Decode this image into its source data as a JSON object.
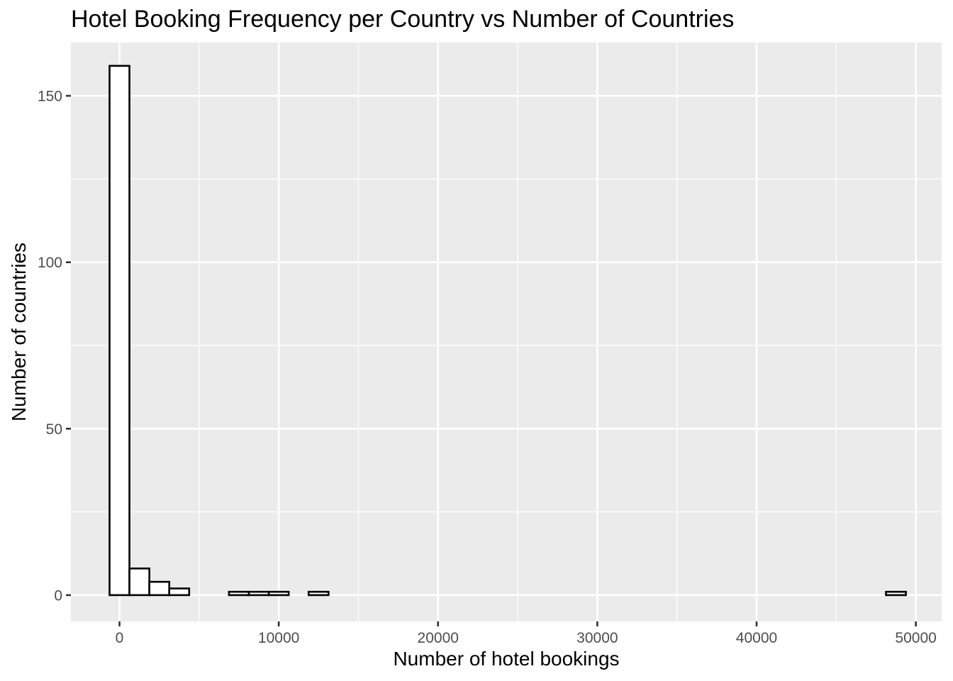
{
  "chart_data": {
    "type": "bar",
    "title": "Hotel Booking Frequency per Country vs Number of Countries",
    "xlabel": "Number of hotel bookings",
    "ylabel": "Number of countries",
    "xlim": [
      -3050,
      51620
    ],
    "ylim": [
      -7.9,
      166
    ],
    "x_ticks": [
      0,
      10000,
      20000,
      30000,
      40000,
      50000
    ],
    "x_tick_labels": [
      "0",
      "10000",
      "20000",
      "30000",
      "40000",
      "50000"
    ],
    "y_ticks": [
      0,
      50,
      100,
      150
    ],
    "y_tick_labels": [
      "0",
      "50",
      "100",
      "150"
    ],
    "bin_width": 1250,
    "bin_centers": [
      0,
      1250,
      2500,
      3750,
      5000,
      6250,
      7500,
      8750,
      10000,
      11250,
      12500,
      13750,
      15000,
      16250,
      17500,
      18750,
      20000,
      21250,
      22500,
      23750,
      25000,
      26250,
      27500,
      28750,
      30000,
      31250,
      32500,
      33750,
      35000,
      36250,
      37500,
      38750,
      40000,
      41250,
      42500,
      43750,
      45000,
      46250,
      47500,
      48750
    ],
    "values": [
      159,
      8,
      4,
      2,
      0,
      0,
      1,
      1,
      1,
      0,
      1,
      0,
      0,
      0,
      0,
      0,
      0,
      0,
      0,
      0,
      0,
      0,
      0,
      0,
      0,
      0,
      0,
      0,
      0,
      0,
      0,
      0,
      0,
      0,
      0,
      0,
      0,
      0,
      0,
      1
    ],
    "grid": true,
    "colors": {
      "panel": "#ebebeb",
      "grid": "#ffffff",
      "bar_fill": "#ffffff",
      "bar_outline": "#000000"
    }
  }
}
